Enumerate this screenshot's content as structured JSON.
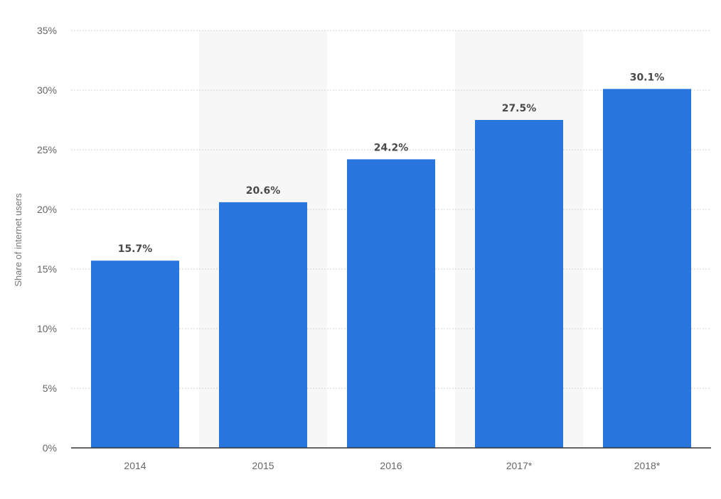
{
  "chart_data": {
    "type": "bar",
    "categories": [
      "2014",
      "2015",
      "2016",
      "2017*",
      "2018*"
    ],
    "values": [
      15.7,
      20.6,
      24.2,
      27.5,
      30.1
    ],
    "data_labels": [
      "15.7%",
      "20.6%",
      "24.2%",
      "27.5%",
      "30.1%"
    ],
    "title": "",
    "xlabel": "",
    "ylabel": "Share of internet users",
    "ylim": [
      0,
      35
    ],
    "yticks": [
      0,
      5,
      10,
      15,
      20,
      25,
      30,
      35
    ],
    "ytick_labels": [
      "0%",
      "5%",
      "10%",
      "15%",
      "20%",
      "25%",
      "30%",
      "35%"
    ],
    "grid": true,
    "legend": "none",
    "bar_color": "#2876dd",
    "alternate_band_color": "#f7f7f7"
  }
}
